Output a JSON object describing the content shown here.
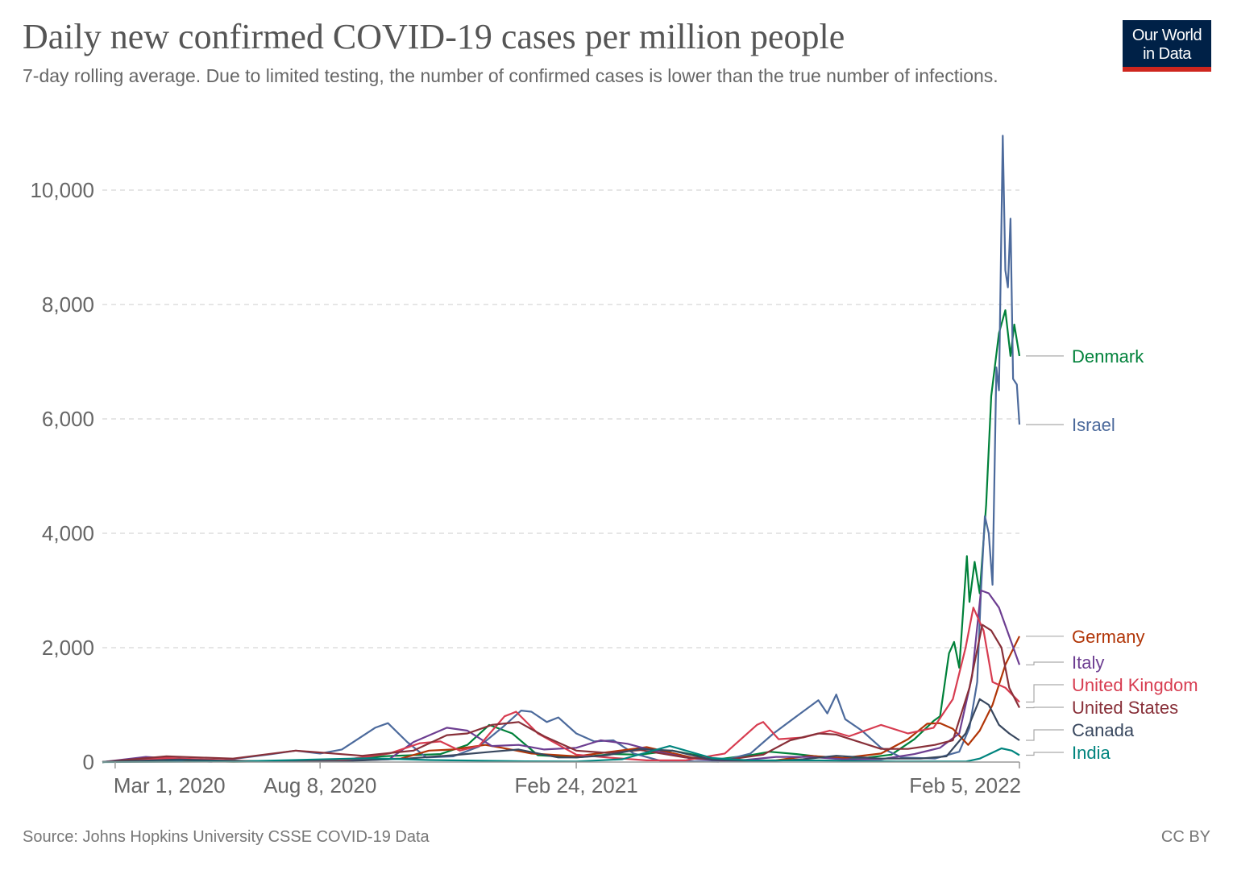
{
  "header": {
    "title": "Daily new confirmed COVID-19 cases per million people",
    "subtitle": "7-day rolling average. Due to limited testing, the number of confirmed cases is lower than the true number of infections."
  },
  "logo": {
    "line1": "Our World",
    "line2": "in Data"
  },
  "footer": {
    "source": "Source: Johns Hopkins University CSSE COVID-19 Data",
    "license": "CC BY"
  },
  "chart_data": {
    "type": "line",
    "x_start": "2020-02-20",
    "x_end": "2022-02-05",
    "ylim": [
      0,
      11000
    ],
    "y_ticks": [
      {
        "value": 0,
        "label": "0"
      },
      {
        "value": 2000,
        "label": "2,000"
      },
      {
        "value": 4000,
        "label": "4,000"
      },
      {
        "value": 6000,
        "label": "6,000"
      },
      {
        "value": 8000,
        "label": "8,000"
      },
      {
        "value": 10000,
        "label": "10,000"
      }
    ],
    "x_ticks": [
      {
        "date": "2020-03-01",
        "label": "Mar 1, 2020"
      },
      {
        "date": "2020-08-08",
        "label": "Aug 8, 2020"
      },
      {
        "date": "2021-02-24",
        "label": "Feb 24, 2021"
      },
      {
        "date": "2022-02-05",
        "label": "Feb 5, 2022"
      }
    ],
    "grid": true,
    "legend": "right, labels at line ends",
    "series": [
      {
        "name": "Denmark",
        "color": "#00813a",
        "label_value": 7100,
        "points": [
          [
            "2020-02-20",
            0
          ],
          [
            "2020-04-01",
            40
          ],
          [
            "2020-06-01",
            5
          ],
          [
            "2020-08-20",
            30
          ],
          [
            "2020-09-25",
            100
          ],
          [
            "2020-11-10",
            140
          ],
          [
            "2020-12-01",
            300
          ],
          [
            "2020-12-18",
            650
          ],
          [
            "2021-01-05",
            500
          ],
          [
            "2021-01-25",
            120
          ],
          [
            "2021-02-24",
            80
          ],
          [
            "2021-03-25",
            140
          ],
          [
            "2021-04-15",
            130
          ],
          [
            "2021-05-10",
            200
          ],
          [
            "2021-06-15",
            50
          ],
          [
            "2021-07-10",
            120
          ],
          [
            "2021-07-25",
            180
          ],
          [
            "2021-08-15",
            140
          ],
          [
            "2021-09-15",
            60
          ],
          [
            "2021-10-10",
            80
          ],
          [
            "2021-10-28",
            130
          ],
          [
            "2021-11-15",
            400
          ],
          [
            "2021-11-30",
            720
          ],
          [
            "2021-12-05",
            800
          ],
          [
            "2021-12-12",
            1900
          ],
          [
            "2021-12-16",
            2100
          ],
          [
            "2021-12-20",
            1650
          ],
          [
            "2021-12-26",
            3600
          ],
          [
            "2021-12-28",
            2800
          ],
          [
            "2022-01-01",
            3500
          ],
          [
            "2022-01-05",
            2950
          ],
          [
            "2022-01-10",
            4500
          ],
          [
            "2022-01-14",
            6400
          ],
          [
            "2022-01-20",
            7500
          ],
          [
            "2022-01-25",
            7900
          ],
          [
            "2022-01-29",
            7100
          ],
          [
            "2022-02-01",
            7650
          ],
          [
            "2022-02-05",
            7100
          ]
        ]
      },
      {
        "name": "Israel",
        "color": "#4c6a9c",
        "label_value": 5900,
        "points": [
          [
            "2020-02-20",
            0
          ],
          [
            "2020-04-01",
            50
          ],
          [
            "2020-05-15",
            5
          ],
          [
            "2020-07-01",
            140
          ],
          [
            "2020-07-20",
            200
          ],
          [
            "2020-08-08",
            150
          ],
          [
            "2020-08-25",
            220
          ],
          [
            "2020-09-20",
            600
          ],
          [
            "2020-09-30",
            680
          ],
          [
            "2020-10-15",
            350
          ],
          [
            "2020-10-30",
            80
          ],
          [
            "2020-11-20",
            100
          ],
          [
            "2020-12-10",
            270
          ],
          [
            "2020-12-28",
            600
          ],
          [
            "2021-01-12",
            900
          ],
          [
            "2021-01-20",
            880
          ],
          [
            "2021-02-01",
            700
          ],
          [
            "2021-02-10",
            780
          ],
          [
            "2021-02-24",
            500
          ],
          [
            "2021-03-10",
            360
          ],
          [
            "2021-03-25",
            380
          ],
          [
            "2021-04-10",
            150
          ],
          [
            "2021-05-01",
            20
          ],
          [
            "2021-06-15",
            5
          ],
          [
            "2021-07-10",
            150
          ],
          [
            "2021-07-28",
            500
          ],
          [
            "2021-08-15",
            800
          ],
          [
            "2021-09-01",
            1080
          ],
          [
            "2021-09-08",
            850
          ],
          [
            "2021-09-15",
            1180
          ],
          [
            "2021-09-22",
            750
          ],
          [
            "2021-10-05",
            550
          ],
          [
            "2021-10-20",
            250
          ],
          [
            "2021-11-05",
            80
          ],
          [
            "2021-12-01",
            60
          ],
          [
            "2021-12-20",
            180
          ],
          [
            "2021-12-28",
            600
          ],
          [
            "2022-01-03",
            1400
          ],
          [
            "2022-01-06",
            3000
          ],
          [
            "2022-01-09",
            4300
          ],
          [
            "2022-01-12",
            4000
          ],
          [
            "2022-01-15",
            3100
          ],
          [
            "2022-01-18",
            6900
          ],
          [
            "2022-01-20",
            6500
          ],
          [
            "2022-01-23",
            10950
          ],
          [
            "2022-01-25",
            8600
          ],
          [
            "2022-01-27",
            8300
          ],
          [
            "2022-01-29",
            9500
          ],
          [
            "2022-01-31",
            6700
          ],
          [
            "2022-02-03",
            6600
          ],
          [
            "2022-02-05",
            5900
          ]
        ]
      },
      {
        "name": "Germany",
        "color": "#b13507",
        "label_value": 2200,
        "points": [
          [
            "2020-02-20",
            0
          ],
          [
            "2020-04-01",
            70
          ],
          [
            "2020-05-15",
            15
          ],
          [
            "2020-08-20",
            20
          ],
          [
            "2020-10-10",
            60
          ],
          [
            "2020-11-01",
            200
          ],
          [
            "2020-11-20",
            220
          ],
          [
            "2020-12-15",
            300
          ],
          [
            "2020-12-28",
            250
          ],
          [
            "2021-01-20",
            150
          ],
          [
            "2021-02-24",
            100
          ],
          [
            "2021-03-20",
            170
          ],
          [
            "2021-04-20",
            260
          ],
          [
            "2021-05-25",
            80
          ],
          [
            "2021-06-25",
            8
          ],
          [
            "2021-07-30",
            30
          ],
          [
            "2021-08-25",
            110
          ],
          [
            "2021-09-20",
            70
          ],
          [
            "2021-10-20",
            150
          ],
          [
            "2021-11-10",
            400
          ],
          [
            "2021-11-25",
            670
          ],
          [
            "2021-12-05",
            680
          ],
          [
            "2021-12-15",
            580
          ],
          [
            "2021-12-27",
            300
          ],
          [
            "2022-01-05",
            550
          ],
          [
            "2022-01-15",
            1000
          ],
          [
            "2022-01-25",
            1700
          ],
          [
            "2022-02-05",
            2200
          ]
        ]
      },
      {
        "name": "Italy",
        "color": "#6d3e91",
        "label_value": 1700,
        "points": [
          [
            "2020-02-20",
            0
          ],
          [
            "2020-03-25",
            90
          ],
          [
            "2020-05-15",
            15
          ],
          [
            "2020-08-20",
            20
          ],
          [
            "2020-10-01",
            50
          ],
          [
            "2020-10-20",
            350
          ],
          [
            "2020-11-15",
            600
          ],
          [
            "2020-12-01",
            550
          ],
          [
            "2020-12-20",
            280
          ],
          [
            "2021-01-10",
            300
          ],
          [
            "2021-01-30",
            220
          ],
          [
            "2021-02-24",
            250
          ],
          [
            "2021-03-15",
            380
          ],
          [
            "2021-04-05",
            320
          ],
          [
            "2021-04-25",
            200
          ],
          [
            "2021-05-25",
            60
          ],
          [
            "2021-06-25",
            12
          ],
          [
            "2021-07-30",
            90
          ],
          [
            "2021-08-25",
            90
          ],
          [
            "2021-09-20",
            50
          ],
          [
            "2021-10-20",
            50
          ],
          [
            "2021-11-15",
            140
          ],
          [
            "2021-12-05",
            250
          ],
          [
            "2021-12-20",
            500
          ],
          [
            "2021-12-30",
            1500
          ],
          [
            "2022-01-06",
            3000
          ],
          [
            "2022-01-12",
            2950
          ],
          [
            "2022-01-20",
            2700
          ],
          [
            "2022-02-05",
            1700
          ]
        ]
      },
      {
        "name": "United Kingdom",
        "color": "#d73c50",
        "label_value": 1050,
        "points": [
          [
            "2020-02-20",
            0
          ],
          [
            "2020-04-10",
            70
          ],
          [
            "2020-06-15",
            15
          ],
          [
            "2020-08-20",
            15
          ],
          [
            "2020-10-01",
            150
          ],
          [
            "2020-10-25",
            330
          ],
          [
            "2020-11-10",
            360
          ],
          [
            "2020-11-25",
            200
          ],
          [
            "2020-12-10",
            280
          ],
          [
            "2020-12-30",
            800
          ],
          [
            "2021-01-08",
            880
          ],
          [
            "2021-01-25",
            500
          ],
          [
            "2021-02-24",
            130
          ],
          [
            "2021-03-20",
            80
          ],
          [
            "2021-04-20",
            30
          ],
          [
            "2021-05-20",
            30
          ],
          [
            "2021-06-20",
            150
          ],
          [
            "2021-07-15",
            650
          ],
          [
            "2021-07-20",
            700
          ],
          [
            "2021-08-01",
            400
          ],
          [
            "2021-08-20",
            430
          ],
          [
            "2021-09-10",
            550
          ],
          [
            "2021-09-25",
            450
          ],
          [
            "2021-10-20",
            650
          ],
          [
            "2021-11-10",
            500
          ],
          [
            "2021-11-30",
            600
          ],
          [
            "2021-12-15",
            1100
          ],
          [
            "2021-12-25",
            2000
          ],
          [
            "2021-12-31",
            2700
          ],
          [
            "2022-01-08",
            2300
          ],
          [
            "2022-01-15",
            1400
          ],
          [
            "2022-01-25",
            1300
          ],
          [
            "2022-02-05",
            1050
          ]
        ]
      },
      {
        "name": "United States",
        "color": "#883039",
        "label_value": 950,
        "points": [
          [
            "2020-02-20",
            0
          ],
          [
            "2020-04-10",
            100
          ],
          [
            "2020-06-01",
            60
          ],
          [
            "2020-07-20",
            200
          ],
          [
            "2020-09-10",
            110
          ],
          [
            "2020-10-20",
            200
          ],
          [
            "2020-11-15",
            470
          ],
          [
            "2020-12-01",
            500
          ],
          [
            "2020-12-20",
            650
          ],
          [
            "2021-01-10",
            700
          ],
          [
            "2021-01-30",
            450
          ],
          [
            "2021-02-24",
            200
          ],
          [
            "2021-03-20",
            160
          ],
          [
            "2021-04-15",
            210
          ],
          [
            "2021-05-20",
            80
          ],
          [
            "2021-06-20",
            35
          ],
          [
            "2021-07-20",
            130
          ],
          [
            "2021-08-10",
            380
          ],
          [
            "2021-09-01",
            500
          ],
          [
            "2021-09-15",
            480
          ],
          [
            "2021-10-20",
            230
          ],
          [
            "2021-11-10",
            230
          ],
          [
            "2021-12-01",
            300
          ],
          [
            "2021-12-15",
            380
          ],
          [
            "2021-12-28",
            1300
          ],
          [
            "2022-01-07",
            2400
          ],
          [
            "2022-01-14",
            2300
          ],
          [
            "2022-01-22",
            2000
          ],
          [
            "2022-01-28",
            1300
          ],
          [
            "2022-02-05",
            950
          ]
        ]
      },
      {
        "name": "Canada",
        "color": "#38475e",
        "label_value": 380,
        "points": [
          [
            "2020-02-20",
            0
          ],
          [
            "2020-04-20",
            45
          ],
          [
            "2020-06-15",
            10
          ],
          [
            "2020-08-20",
            10
          ],
          [
            "2020-10-15",
            60
          ],
          [
            "2020-11-20",
            120
          ],
          [
            "2020-12-20",
            180
          ],
          [
            "2021-01-10",
            220
          ],
          [
            "2021-02-10",
            80
          ],
          [
            "2021-02-24",
            80
          ],
          [
            "2021-03-20",
            120
          ],
          [
            "2021-04-15",
            230
          ],
          [
            "2021-05-10",
            200
          ],
          [
            "2021-06-10",
            40
          ],
          [
            "2021-07-20",
            10
          ],
          [
            "2021-08-20",
            50
          ],
          [
            "2021-09-15",
            110
          ],
          [
            "2021-10-20",
            60
          ],
          [
            "2021-11-20",
            60
          ],
          [
            "2021-12-10",
            100
          ],
          [
            "2021-12-25",
            500
          ],
          [
            "2022-01-05",
            1100
          ],
          [
            "2022-01-12",
            1000
          ],
          [
            "2022-01-20",
            650
          ],
          [
            "2022-01-28",
            500
          ],
          [
            "2022-02-05",
            380
          ]
        ]
      },
      {
        "name": "India",
        "color": "#00847e",
        "label_value": 120,
        "points": [
          [
            "2020-02-20",
            0
          ],
          [
            "2020-06-01",
            10
          ],
          [
            "2020-09-15",
            67
          ],
          [
            "2020-11-01",
            35
          ],
          [
            "2021-01-15",
            12
          ],
          [
            "2021-02-24",
            10
          ],
          [
            "2021-04-01",
            50
          ],
          [
            "2021-05-08",
            280
          ],
          [
            "2021-06-10",
            70
          ],
          [
            "2021-07-10",
            28
          ],
          [
            "2021-09-01",
            28
          ],
          [
            "2021-11-01",
            10
          ],
          [
            "2021-12-25",
            8
          ],
          [
            "2022-01-05",
            60
          ],
          [
            "2022-01-22",
            240
          ],
          [
            "2022-01-30",
            200
          ],
          [
            "2022-02-05",
            120
          ]
        ]
      }
    ]
  }
}
